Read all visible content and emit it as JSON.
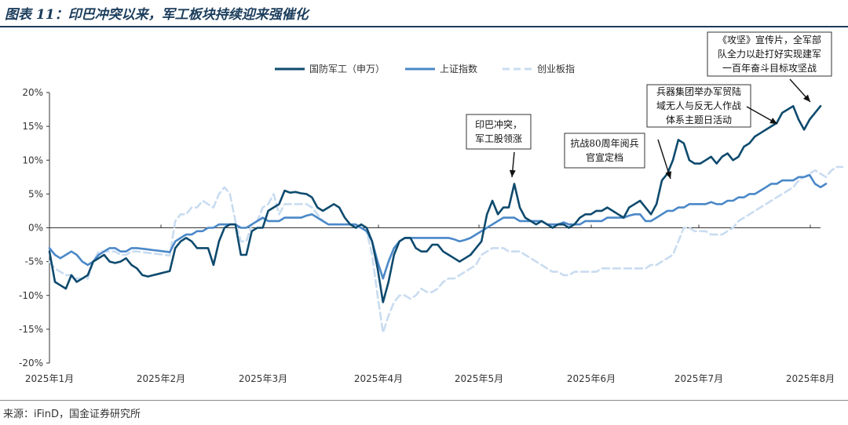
{
  "header": {
    "title": "图表 11：印巴冲突以来，军工板块持续迎来强催化"
  },
  "footer": {
    "source": "来源：iFinD，国金证券研究所"
  },
  "colors": {
    "navy": "#0e4a6e",
    "mid_blue": "#4a88c8",
    "light_blue": "#c9dcf0",
    "title": "#1b3d5c"
  },
  "chart_data": {
    "type": "line",
    "x_tick_labels": [
      "2025年1月",
      "2025年2月",
      "2025年3月",
      "2025年4月",
      "2025年5月",
      "2025年6月",
      "2025年7月",
      "2025年8月"
    ],
    "y_tick_labels": [
      "20%",
      "15%",
      "10%",
      "5%",
      "0%",
      "-5%",
      "-10%",
      "-15%",
      "-20%"
    ],
    "ylim": [
      -20,
      20
    ],
    "grid": false,
    "legend_position": "top-right",
    "annotations": [
      {
        "lines": [
          "印巴冲突，",
          "军工股领涨"
        ]
      },
      {
        "lines": [
          "抗战80周年阅兵",
          "官宣定档"
        ]
      },
      {
        "lines": [
          "兵器集团举办军贸陆",
          "域无人与反无人作战",
          "体系主题日活动"
        ]
      },
      {
        "lines": [
          "《攻坚》宣传片，全军部",
          "队全力以赴打好实现建军",
          "一百年奋斗目标攻坚战"
        ]
      }
    ],
    "series": [
      {
        "name": "国防军工（申万）",
        "values": [
          -3.5,
          -8,
          -8.5,
          -9,
          -7,
          -8,
          -7.5,
          -7,
          -5,
          -4.5,
          -4,
          -5,
          -5.2,
          -5,
          -4.5,
          -5.5,
          -6,
          -7,
          -7.2,
          -7,
          -6.8,
          -6.6,
          -6.4,
          -3,
          -2,
          -1.5,
          -2,
          -3,
          -3,
          -3,
          -5.5,
          -2,
          0,
          0.5,
          0.5,
          -4,
          -4,
          -0.5,
          0,
          0,
          2.5,
          3,
          3.5,
          5.5,
          5.2,
          5.3,
          5.1,
          5,
          4.5,
          3,
          2.5,
          3,
          3.5,
          3,
          1.5,
          0.5,
          0,
          0.5,
          0,
          -2,
          -6,
          -11,
          -8,
          -4,
          -2,
          -1.5,
          -1.5,
          -3,
          -3.5,
          -3.5,
          -2.5,
          -2.5,
          -3.5,
          -4,
          -4.5,
          -5,
          -4.5,
          -4,
          -3,
          -2,
          2,
          4,
          2,
          3,
          3,
          6.5,
          3,
          1.5,
          1,
          0.5,
          1,
          0.5,
          0,
          0.5,
          0.5,
          0,
          0.5,
          1.5,
          2,
          2,
          2.5,
          2.5,
          3,
          2.5,
          2,
          1.5,
          3,
          3.5,
          4,
          3,
          2,
          3.5,
          7,
          8,
          10,
          13,
          12.5,
          10,
          9.5,
          9.5,
          10,
          10.5,
          9.5,
          10.5,
          11,
          10,
          10.5,
          12,
          12.5,
          13.5,
          14,
          14.5,
          15,
          15.5,
          17,
          17.5,
          18,
          16,
          14.5,
          16,
          17,
          18
        ]
      },
      {
        "name": "上证指数",
        "values": [
          -3,
          -4,
          -4.5,
          -4,
          -3.5,
          -4,
          -5,
          -5.5,
          -5,
          -4,
          -3.5,
          -3,
          -3,
          -3.5,
          -3.5,
          -3,
          -3,
          -3.1,
          -3.2,
          -3.3,
          -3.4,
          -3.5,
          -3.6,
          -2,
          -1.5,
          -1,
          -1,
          -0.5,
          -0.5,
          0,
          0,
          0.5,
          0.5,
          0.5,
          0.5,
          0,
          0,
          0.5,
          1,
          1.5,
          1,
          1,
          1,
          1.5,
          1.5,
          1.5,
          1.5,
          1.8,
          2,
          1.5,
          1,
          0.5,
          0.5,
          0.5,
          0.5,
          0.5,
          0.5,
          0,
          -0.5,
          -2,
          -5,
          -7.5,
          -5,
          -3,
          -2,
          -1.5,
          -1.5,
          -1.5,
          -1.5,
          -1.5,
          -1.5,
          -1.5,
          -1.5,
          -1.5,
          -1.7,
          -2,
          -1.8,
          -1.5,
          -1,
          -0.5,
          0,
          0.5,
          1,
          1.5,
          1.5,
          1.5,
          1,
          1,
          1,
          1,
          1,
          0.5,
          0.5,
          0.5,
          0.8,
          0.5,
          0.5,
          0.5,
          1,
          1,
          1,
          1,
          1.5,
          1.5,
          1.5,
          1.5,
          1.8,
          2,
          2,
          1,
          1,
          1.5,
          2,
          2.5,
          2.5,
          3,
          3,
          3.5,
          3.5,
          3.5,
          3.5,
          3.8,
          3.5,
          3.5,
          4,
          4,
          4.5,
          4.5,
          5,
          5,
          5.5,
          6,
          6.5,
          6.5,
          7,
          7,
          7,
          7.5,
          7.5,
          7.8,
          6.5,
          6,
          6.5
        ]
      },
      {
        "name": "创业板指",
        "values": [
          -5,
          -6,
          -6.5,
          -7,
          -7,
          -7.5,
          -7.5,
          -7.5,
          -5,
          -3.5,
          -3.5,
          -3.5,
          -3.5,
          -4,
          -4,
          -3.5,
          -3.5,
          -3.6,
          -3.7,
          -3.8,
          -3.9,
          -4,
          -4.1,
          1,
          2,
          2,
          3,
          3,
          4,
          3.5,
          3,
          5,
          6,
          5,
          1,
          -2,
          -2,
          0.5,
          1,
          3,
          3.5,
          5,
          2,
          3.5,
          3.5,
          3.5,
          3.5,
          3.5,
          3,
          2,
          1,
          0.5,
          0.5,
          0.5,
          0.5,
          0.5,
          0,
          0,
          -0.5,
          -4,
          -10,
          -15.5,
          -13,
          -11,
          -10,
          -10,
          -10.5,
          -10,
          -9,
          -9.5,
          -9.5,
          -9,
          -8,
          -7.5,
          -7.5,
          -7,
          -6.5,
          -6,
          -5.5,
          -4,
          -3.5,
          -3,
          -3,
          -3,
          -3.5,
          -3.5,
          -3.5,
          -4,
          -4.5,
          -5,
          -5.5,
          -6,
          -6.5,
          -6.5,
          -7,
          -7,
          -6.5,
          -6.5,
          -6.5,
          -6.5,
          -6.5,
          -6,
          -6,
          -6,
          -6,
          -6,
          -6,
          -6,
          -6,
          -6,
          -5.5,
          -5.5,
          -5,
          -4.5,
          -4,
          -2,
          0,
          0,
          -0.5,
          -0.5,
          -0.5,
          -1,
          -1,
          -1,
          -0.5,
          0,
          1,
          1.5,
          2,
          2.5,
          3,
          3.5,
          4,
          4.5,
          5,
          5.5,
          6,
          7,
          7.5,
          8,
          8.5,
          8,
          7.5,
          8.5,
          9,
          9
        ]
      }
    ]
  }
}
